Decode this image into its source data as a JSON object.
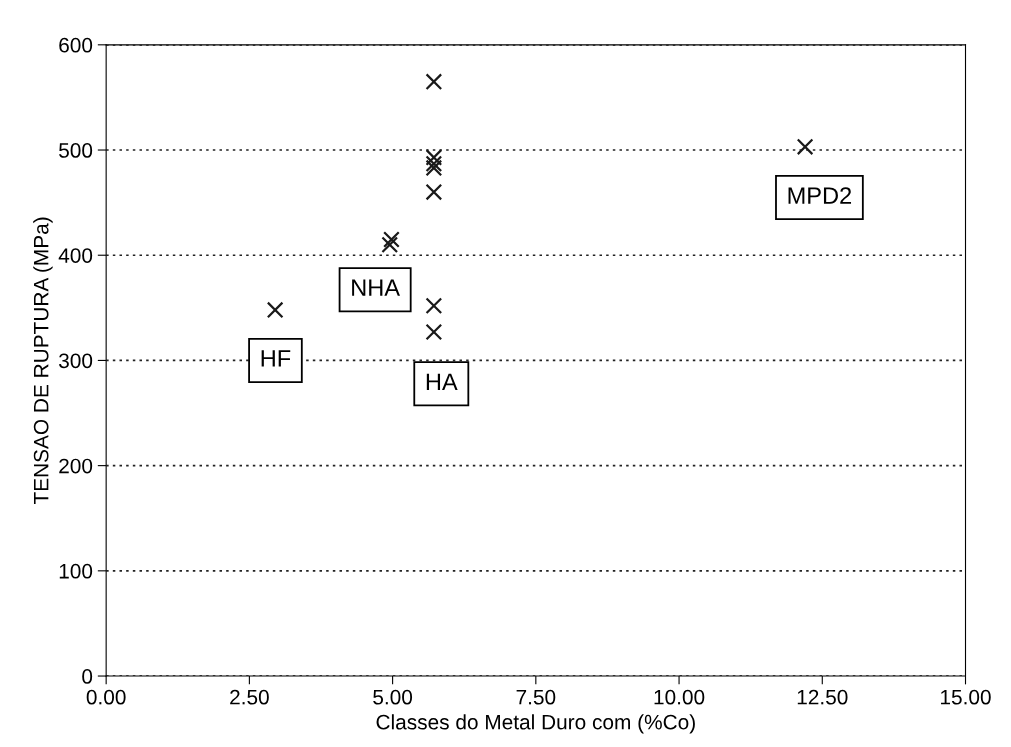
{
  "chart_data": {
    "type": "scatter",
    "xlabel": "Classes do Metal Duro com (%Co)",
    "ylabel": "TENSAO DE RUPTURA (MPa)",
    "series": [
      {
        "color": "#1a1a1a",
        "x": [
          2.95,
          4.95,
          4.98,
          5.72,
          5.72,
          5.72,
          5.72,
          5.72,
          5.72,
          5.72,
          12.2
        ],
        "values": [
          348,
          410,
          415,
          565,
          493,
          487,
          483,
          460,
          352,
          327,
          503
        ]
      }
    ],
    "xlim": [
      0,
      15
    ],
    "ylim": [
      0,
      600
    ],
    "xticks": [
      {
        "value": 0,
        "label": "0.00"
      },
      {
        "value": 2.5,
        "label": "2.50"
      },
      {
        "value": 5,
        "label": "5.00"
      },
      {
        "value": 7.5,
        "label": "7.50"
      },
      {
        "value": 10,
        "label": "10.00"
      },
      {
        "value": 12.5,
        "label": "12.50"
      },
      {
        "value": 15,
        "label": "15.00"
      }
    ],
    "yticks": [
      0,
      100,
      200,
      300,
      400,
      500,
      600
    ],
    "grid": "y",
    "marker": "cross",
    "annotations": [
      "HF",
      "NHA",
      "HA",
      "MPD2"
    ]
  }
}
